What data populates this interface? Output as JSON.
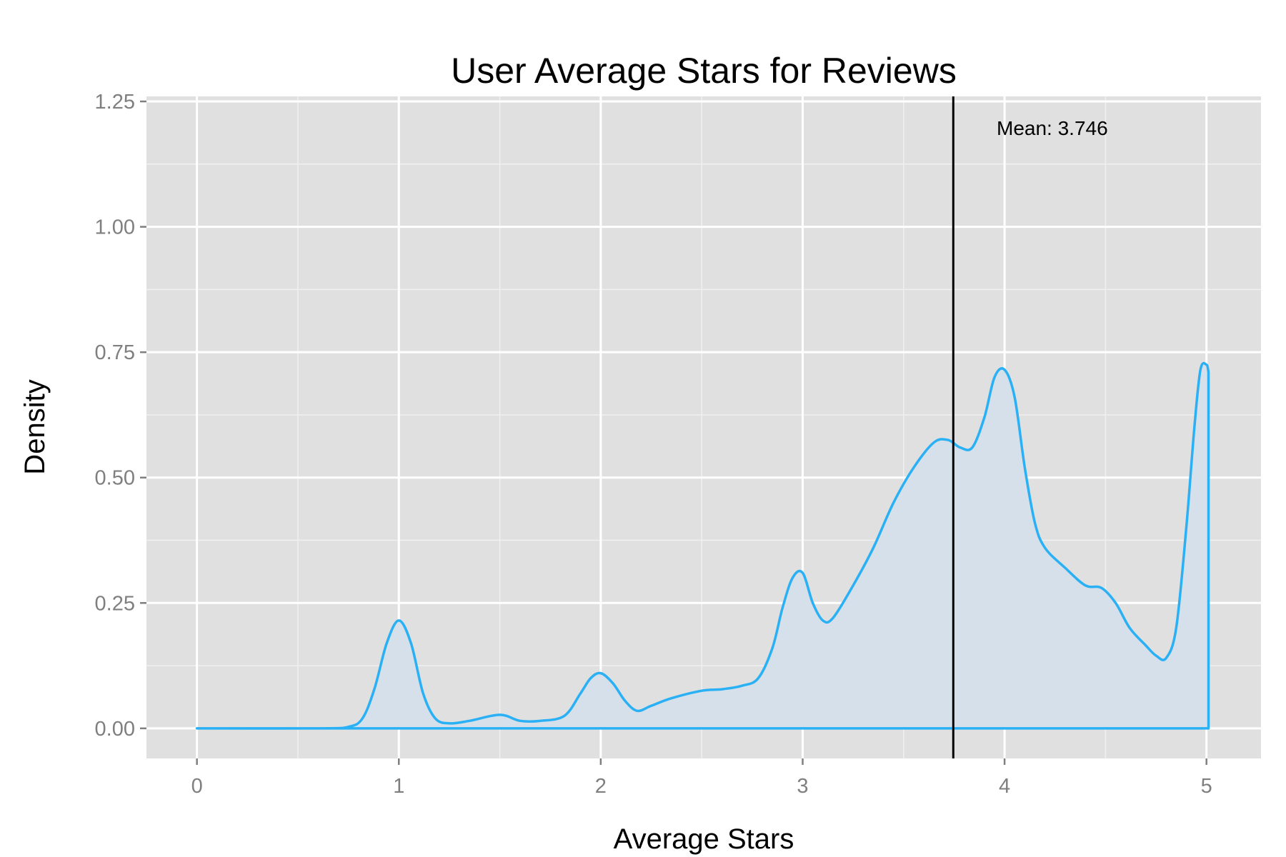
{
  "chart_data": {
    "type": "area",
    "title": "User Average Stars for Reviews",
    "xlabel": "Average Stars",
    "ylabel": "Density",
    "xlim": [
      -0.25,
      5.27
    ],
    "ylim": [
      -0.06,
      1.26
    ],
    "x_ticks": [
      0,
      1,
      2,
      3,
      4,
      5
    ],
    "x_tick_labels": [
      "0",
      "1",
      "2",
      "3",
      "4",
      "5"
    ],
    "y_ticks": [
      0,
      0.25,
      0.5,
      0.75,
      1.0,
      1.25
    ],
    "y_tick_labels": [
      "0.00",
      "0.25",
      "0.50",
      "0.75",
      "1.00",
      "1.25"
    ],
    "grid": true,
    "line_color": "#29b0f5",
    "fill_color": "#d6e0ea",
    "panel_background": "#e0e0e0",
    "mean_line": {
      "value": 3.746,
      "label": "Mean: 3.746",
      "color": "#000000"
    },
    "series": [
      {
        "x": [
          0,
          0.6,
          0.75,
          0.82,
          0.88,
          0.94,
          1.0,
          1.06,
          1.12,
          1.18,
          1.25,
          1.35,
          1.5,
          1.6,
          1.7,
          1.82,
          1.9,
          1.95,
          2.0,
          2.06,
          2.12,
          2.18,
          2.25,
          2.35,
          2.5,
          2.6,
          2.7,
          2.78,
          2.85,
          2.9,
          2.95,
          3.0,
          3.05,
          3.1,
          3.15,
          3.25,
          3.35,
          3.45,
          3.55,
          3.65,
          3.72,
          3.78,
          3.84,
          3.9,
          3.95,
          4.0,
          4.05,
          4.1,
          4.15,
          4.2,
          4.3,
          4.4,
          4.48,
          4.55,
          4.62,
          4.7,
          4.75,
          4.8,
          4.85,
          4.9,
          4.94,
          4.97,
          5.0,
          5.01
        ],
        "y": [
          0,
          0,
          0.003,
          0.02,
          0.08,
          0.17,
          0.215,
          0.17,
          0.07,
          0.02,
          0.01,
          0.015,
          0.027,
          0.015,
          0.015,
          0.025,
          0.07,
          0.1,
          0.11,
          0.09,
          0.055,
          0.035,
          0.045,
          0.06,
          0.075,
          0.078,
          0.085,
          0.1,
          0.16,
          0.24,
          0.3,
          0.31,
          0.25,
          0.215,
          0.22,
          0.285,
          0.36,
          0.45,
          0.52,
          0.57,
          0.575,
          0.56,
          0.56,
          0.62,
          0.7,
          0.715,
          0.66,
          0.52,
          0.41,
          0.36,
          0.32,
          0.285,
          0.28,
          0.25,
          0.2,
          0.165,
          0.145,
          0.14,
          0.2,
          0.4,
          0.6,
          0.715,
          0.725,
          0.71
        ]
      }
    ]
  }
}
